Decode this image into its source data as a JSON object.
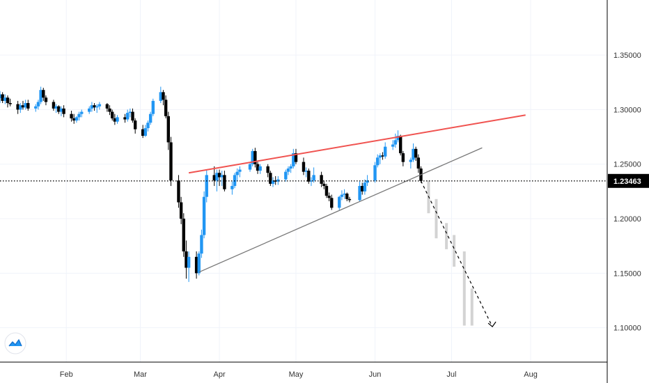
{
  "chart_data": {
    "type": "candlestick",
    "x_labels": [
      "Feb",
      "Mar",
      "Apr",
      "May",
      "Jun",
      "Jul",
      "Aug"
    ],
    "y_ticks": [
      1.1,
      1.15,
      1.2,
      1.25,
      1.3,
      1.35
    ],
    "y_tick_labels": [
      "1.10000",
      "1.15000",
      "1.20000",
      "1.25000",
      "1.30000",
      "1.35000"
    ],
    "ylim": [
      1.0685,
      1.4005
    ],
    "date_range": [
      "2020-01-06",
      "2020-08-10"
    ],
    "current_price": 1.23463,
    "current_price_label": "1.23463",
    "grid": true,
    "colors": {
      "up": "#2196f3",
      "down": "#000000",
      "resistance": "#f05350",
      "support": "#787878",
      "projection": "#000000",
      "ghost": "#d3d3d3",
      "price_tag_bg": "#000000",
      "grid": "#f0f3fa"
    },
    "candles": [
      [
        "2020-01-06",
        1.3105,
        1.317,
        1.306,
        1.314
      ],
      [
        "2020-01-07",
        1.314,
        1.316,
        1.306,
        1.308
      ],
      [
        "2020-01-08",
        1.308,
        1.314,
        1.305,
        1.311
      ],
      [
        "2020-01-09",
        1.311,
        1.313,
        1.302,
        1.306
      ],
      [
        "2020-01-10",
        1.306,
        1.31,
        1.303,
        1.305
      ],
      [
        "2020-01-13",
        1.305,
        1.308,
        1.296,
        1.3
      ],
      [
        "2020-01-14",
        1.3,
        1.306,
        1.297,
        1.304
      ],
      [
        "2020-01-15",
        1.304,
        1.308,
        1.3,
        1.302
      ],
      [
        "2020-01-16",
        1.302,
        1.309,
        1.3,
        1.306
      ],
      [
        "2020-01-17",
        1.306,
        1.309,
        1.299,
        1.301
      ],
      [
        "2020-01-20",
        1.301,
        1.305,
        1.298,
        1.303
      ],
      [
        "2020-01-21",
        1.303,
        1.309,
        1.3,
        1.307
      ],
      [
        "2020-01-22",
        1.307,
        1.321,
        1.305,
        1.318
      ],
      [
        "2020-01-23",
        1.318,
        1.32,
        1.308,
        1.311
      ],
      [
        "2020-01-24",
        1.311,
        1.313,
        1.304,
        1.307
      ],
      [
        "2020-01-27",
        1.307,
        1.309,
        1.299,
        1.301
      ],
      [
        "2020-01-28",
        1.301,
        1.305,
        1.297,
        1.303
      ],
      [
        "2020-01-29",
        1.303,
        1.304,
        1.296,
        1.298
      ],
      [
        "2020-01-30",
        1.298,
        1.303,
        1.294,
        1.301
      ],
      [
        "2020-01-31",
        1.301,
        1.304,
        1.293,
        1.296
      ],
      [
        "2020-02-03",
        1.296,
        1.299,
        1.289,
        1.292
      ],
      [
        "2020-02-04",
        1.292,
        1.296,
        1.287,
        1.29
      ],
      [
        "2020-02-05",
        1.29,
        1.294,
        1.288,
        1.293
      ],
      [
        "2020-02-06",
        1.293,
        1.298,
        1.29,
        1.296
      ],
      [
        "2020-02-07",
        1.296,
        1.3,
        1.293,
        1.298
      ],
      [
        "2020-02-10",
        1.298,
        1.303,
        1.296,
        1.301
      ],
      [
        "2020-02-11",
        1.301,
        1.307,
        1.298,
        1.304
      ],
      [
        "2020-02-12",
        1.304,
        1.306,
        1.299,
        1.302
      ],
      [
        "2020-02-13",
        1.302,
        1.305,
        1.297,
        1.303
      ],
      [
        "2020-02-14",
        1.303,
        1.307,
        1.3,
        1.305
      ],
      [
        "2020-02-17",
        1.305,
        1.306,
        1.298,
        1.301
      ],
      [
        "2020-02-18",
        1.301,
        1.304,
        1.295,
        1.298
      ],
      [
        "2020-02-19",
        1.298,
        1.3,
        1.29,
        1.292
      ],
      [
        "2020-02-20",
        1.292,
        1.296,
        1.286,
        1.289
      ],
      [
        "2020-02-21",
        1.289,
        1.295,
        1.287,
        1.293
      ],
      [
        "2020-02-24",
        1.293,
        1.296,
        1.288,
        1.291
      ],
      [
        "2020-02-25",
        1.291,
        1.3,
        1.289,
        1.297
      ],
      [
        "2020-02-26",
        1.297,
        1.301,
        1.293,
        1.298
      ],
      [
        "2020-02-27",
        1.298,
        1.301,
        1.288,
        1.29
      ],
      [
        "2020-02-28",
        1.29,
        1.292,
        1.278,
        1.282
      ],
      [
        "2020-03-02",
        1.282,
        1.286,
        1.274,
        1.276
      ],
      [
        "2020-03-03",
        1.276,
        1.286,
        1.275,
        1.283
      ],
      [
        "2020-03-04",
        1.283,
        1.29,
        1.28,
        1.288
      ],
      [
        "2020-03-05",
        1.288,
        1.298,
        1.286,
        1.296
      ],
      [
        "2020-03-06",
        1.296,
        1.31,
        1.294,
        1.308
      ],
      [
        "2020-03-09",
        1.308,
        1.321,
        1.306,
        1.316
      ],
      [
        "2020-03-10",
        1.316,
        1.318,
        1.304,
        1.309
      ],
      [
        "2020-03-11",
        1.309,
        1.313,
        1.292,
        1.294
      ],
      [
        "2020-03-12",
        1.294,
        1.298,
        1.263,
        1.27
      ],
      [
        "2020-03-13",
        1.27,
        1.275,
        1.23,
        1.235
      ],
      [
        "2020-03-16",
        1.235,
        1.24,
        1.21,
        1.215
      ],
      [
        "2020-03-17",
        1.215,
        1.22,
        1.195,
        1.2
      ],
      [
        "2020-03-18",
        1.2,
        1.205,
        1.165,
        1.17
      ],
      [
        "2020-03-19",
        1.17,
        1.18,
        1.145,
        1.155
      ],
      [
        "2020-03-20",
        1.155,
        1.17,
        1.142,
        1.165
      ],
      [
        "2020-03-23",
        1.165,
        1.17,
        1.145,
        1.15
      ],
      [
        "2020-03-24",
        1.15,
        1.17,
        1.148,
        1.168
      ],
      [
        "2020-03-25",
        1.168,
        1.19,
        1.164,
        1.185
      ],
      [
        "2020-03-26",
        1.185,
        1.225,
        1.182,
        1.22
      ],
      [
        "2020-03-27",
        1.22,
        1.245,
        1.215,
        1.24
      ],
      [
        "2020-03-30",
        1.24,
        1.248,
        1.23,
        1.235
      ],
      [
        "2020-03-31",
        1.235,
        1.245,
        1.225,
        1.242
      ],
      [
        "2020-04-01",
        1.242,
        1.245,
        1.23,
        1.238
      ],
      [
        "2020-04-02",
        1.238,
        1.244,
        1.23,
        1.24
      ],
      [
        "2020-04-03",
        1.24,
        1.244,
        1.225,
        1.227
      ],
      [
        "2020-04-06",
        1.227,
        1.234,
        1.222,
        1.23
      ],
      [
        "2020-04-07",
        1.23,
        1.242,
        1.228,
        1.24
      ],
      [
        "2020-04-08",
        1.24,
        1.246,
        1.235,
        1.243
      ],
      [
        "2020-04-09",
        1.243,
        1.248,
        1.238,
        1.245
      ],
      [
        "2020-04-13",
        1.245,
        1.252,
        1.243,
        1.25
      ],
      [
        "2020-04-14",
        1.25,
        1.264,
        1.248,
        1.262
      ],
      [
        "2020-04-15",
        1.262,
        1.265,
        1.247,
        1.25
      ],
      [
        "2020-04-16",
        1.25,
        1.252,
        1.241,
        1.244
      ],
      [
        "2020-04-17",
        1.244,
        1.25,
        1.241,
        1.248
      ],
      [
        "2020-04-20",
        1.248,
        1.25,
        1.238,
        1.242
      ],
      [
        "2020-04-21",
        1.242,
        1.244,
        1.23,
        1.232
      ],
      [
        "2020-04-22",
        1.232,
        1.238,
        1.229,
        1.235
      ],
      [
        "2020-04-23",
        1.235,
        1.239,
        1.231,
        1.234
      ],
      [
        "2020-04-24",
        1.234,
        1.239,
        1.231,
        1.236
      ],
      [
        "2020-04-27",
        1.236,
        1.245,
        1.234,
        1.243
      ],
      [
        "2020-04-28",
        1.243,
        1.248,
        1.24,
        1.246
      ],
      [
        "2020-04-29",
        1.246,
        1.25,
        1.242,
        1.248
      ],
      [
        "2020-04-30",
        1.248,
        1.264,
        1.246,
        1.26
      ],
      [
        "2020-05-01",
        1.26,
        1.264,
        1.25,
        1.252
      ],
      [
        "2020-05-04",
        1.252,
        1.256,
        1.24,
        1.243
      ],
      [
        "2020-05-05",
        1.243,
        1.247,
        1.238,
        1.244
      ],
      [
        "2020-05-06",
        1.244,
        1.246,
        1.232,
        1.234
      ],
      [
        "2020-05-07",
        1.234,
        1.238,
        1.23,
        1.235
      ],
      [
        "2020-05-08",
        1.235,
        1.247,
        1.233,
        1.24
      ],
      [
        "2020-05-11",
        1.24,
        1.243,
        1.229,
        1.232
      ],
      [
        "2020-05-12",
        1.232,
        1.235,
        1.227,
        1.23
      ],
      [
        "2020-05-13",
        1.23,
        1.232,
        1.219,
        1.221
      ],
      [
        "2020-05-14",
        1.221,
        1.224,
        1.216,
        1.219
      ],
      [
        "2020-05-15",
        1.219,
        1.222,
        1.208,
        1.21
      ],
      [
        "2020-05-18",
        1.21,
        1.221,
        1.208,
        1.22
      ],
      [
        "2020-05-19",
        1.22,
        1.226,
        1.217,
        1.222
      ],
      [
        "2020-05-20",
        1.222,
        1.227,
        1.218,
        1.223
      ],
      [
        "2020-05-21",
        1.223,
        1.224,
        1.216,
        1.218
      ],
      [
        "2020-05-22",
        1.218,
        1.22,
        1.215,
        1.217
      ],
      [
        "2020-05-26",
        1.217,
        1.234,
        1.216,
        1.23
      ],
      [
        "2020-05-27",
        1.23,
        1.233,
        1.222,
        1.225
      ],
      [
        "2020-05-28",
        1.225,
        1.236,
        1.222,
        1.233
      ],
      [
        "2020-05-29",
        1.233,
        1.24,
        1.23,
        1.235
      ],
      [
        "2020-06-01",
        1.235,
        1.252,
        1.233,
        1.249
      ],
      [
        "2020-06-02",
        1.249,
        1.259,
        1.247,
        1.256
      ],
      [
        "2020-06-03",
        1.256,
        1.26,
        1.25,
        1.258
      ],
      [
        "2020-06-04",
        1.258,
        1.261,
        1.254,
        1.257
      ],
      [
        "2020-06-05",
        1.257,
        1.27,
        1.255,
        1.266
      ],
      [
        "2020-06-08",
        1.266,
        1.272,
        1.263,
        1.268
      ],
      [
        "2020-06-09",
        1.268,
        1.278,
        1.265,
        1.272
      ],
      [
        "2020-06-10",
        1.272,
        1.281,
        1.27,
        1.276
      ],
      [
        "2020-06-11",
        1.276,
        1.277,
        1.258,
        1.26
      ],
      [
        "2020-06-12",
        1.26,
        1.262,
        1.248,
        1.252
      ],
      [
        "2020-06-15",
        1.252,
        1.256,
        1.246,
        1.254
      ],
      [
        "2020-06-16",
        1.254,
        1.269,
        1.252,
        1.264
      ],
      [
        "2020-06-17",
        1.264,
        1.266,
        1.253,
        1.256
      ],
      [
        "2020-06-18",
        1.256,
        1.259,
        1.242,
        1.246
      ],
      [
        "2020-06-19",
        1.246,
        1.248,
        1.233,
        1.2346
      ]
    ],
    "ghost_bars": [
      [
        "2020-06-22",
        1.235,
        1.205
      ],
      [
        "2020-06-25",
        1.218,
        1.182
      ],
      [
        "2020-06-29",
        1.196,
        1.172
      ],
      [
        "2020-07-02",
        1.185,
        1.156
      ],
      [
        "2020-07-06",
        1.17,
        1.102
      ],
      [
        "2020-07-09",
        1.136,
        1.102
      ]
    ],
    "trendlines": [
      {
        "role": "resistance",
        "from": [
          "2020-03-20",
          1.242
        ],
        "to": [
          "2020-07-30",
          1.295
        ]
      },
      {
        "role": "support",
        "from": [
          "2020-03-24",
          1.151
        ],
        "to": [
          "2020-07-13",
          1.265
        ]
      },
      {
        "role": "projection",
        "from": [
          "2020-06-19",
          1.2346
        ],
        "to": [
          "2020-07-17",
          1.101
        ]
      }
    ]
  }
}
